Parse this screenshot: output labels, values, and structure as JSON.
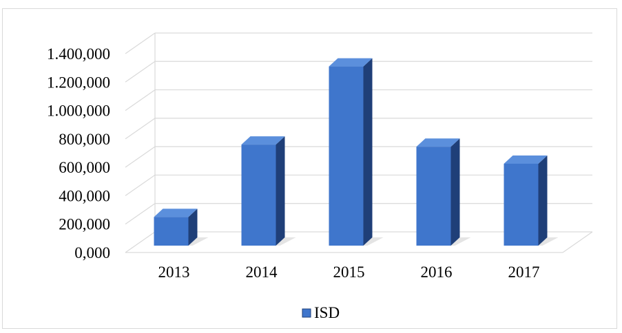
{
  "chart_data": {
    "type": "bar",
    "categories": [
      "2013",
      "2014",
      "2015",
      "2016",
      "2017"
    ],
    "series": [
      {
        "name": "ISD",
        "values": [
          250000,
          760000,
          1310000,
          745000,
          625000
        ]
      }
    ],
    "y_ticks": [
      "0,000",
      "200,000",
      "400,000",
      "600,000",
      "800,000",
      "1.000,000",
      "1.200,000",
      "1.400,000"
    ],
    "ylim": [
      0,
      1400000
    ],
    "grid": true,
    "legend_position": "bottom",
    "colors": {
      "bar_front": "#3f76cc",
      "bar_side": "#1f3f78",
      "bar_top": "#5b8fdc",
      "grid": "#d9d9d9"
    }
  }
}
